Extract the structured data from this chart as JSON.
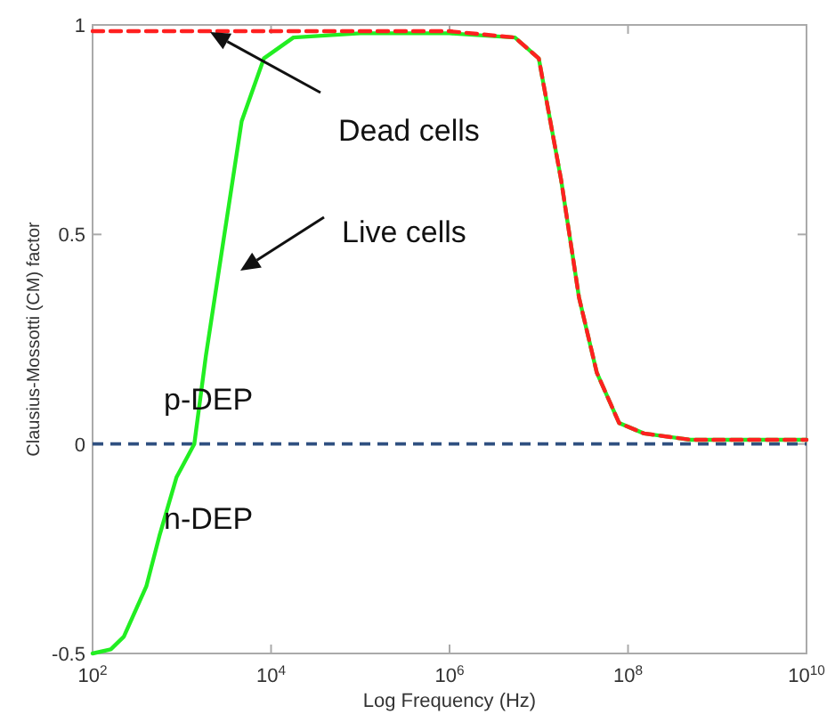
{
  "chart_data": {
    "type": "line",
    "xlabel": "Log Frequency (Hz)",
    "ylabel": "Clausius-Mossotti (CM) factor",
    "log": "x",
    "xlim": [
      100,
      10000000000
    ],
    "xticks": [
      {
        "value": 100,
        "label": "10$^{2}$"
      },
      {
        "value": 10000,
        "label": "10$^{4}$"
      },
      {
        "value": 1000000,
        "label": "10$^{6}$"
      },
      {
        "value": 100000000,
        "label": "10$^{8}$"
      },
      {
        "value": 10000000000,
        "label": "10$^{10}$"
      }
    ],
    "ylim": [
      -0.5,
      1
    ],
    "yticks": [
      -0.5,
      0,
      0.5,
      1
    ],
    "grid": false,
    "marker": "none",
    "series": [
      {
        "color": "#22ee22",
        "line_style": "solid",
        "x": [
          100,
          160,
          224,
          400,
          560,
          870,
          1380,
          1860,
          2950,
          4680,
          8300,
          17800,
          100000,
          1000000,
          5400000,
          10000000,
          17800000,
          28200000,
          44700000,
          79400000,
          151000000,
          500000000,
          10000000000
        ],
        "values": [
          -0.5,
          -0.49,
          -0.46,
          -0.34,
          -0.22,
          -0.08,
          0.0,
          0.21,
          0.49,
          0.77,
          0.92,
          0.97,
          0.98,
          0.98,
          0.97,
          0.92,
          0.63,
          0.35,
          0.17,
          0.05,
          0.025,
          0.01,
          0.01
        ]
      },
      {
        "color": "#ff2020",
        "line_style": "dashed",
        "x": [
          100,
          1000000,
          5400000,
          10000000,
          17800000,
          28200000,
          44700000,
          79400000,
          151000000,
          500000000,
          10000000000
        ],
        "values": [
          0.985,
          0.985,
          0.97,
          0.92,
          0.63,
          0.35,
          0.17,
          0.05,
          0.025,
          0.01,
          0.01
        ]
      }
    ],
    "ref_lines": [
      {
        "axis": "y",
        "value": 0,
        "color": "#2f5080",
        "line_style": "dashed"
      }
    ],
    "annotations": [
      "Dead cells",
      "Live cells",
      "p-DEP",
      "n-DEP"
    ]
  }
}
